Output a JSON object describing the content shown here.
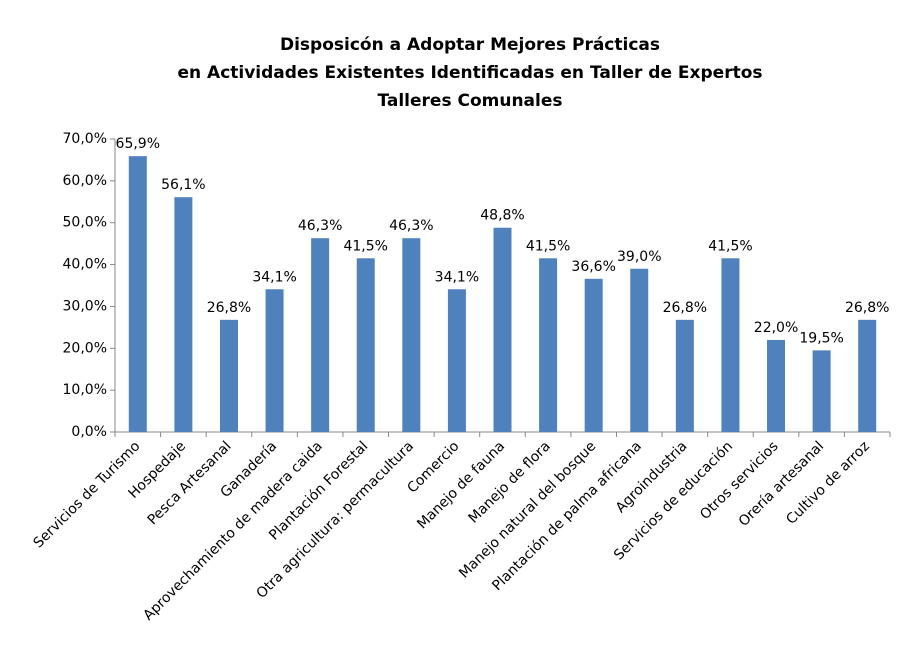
{
  "chart_data": {
    "type": "bar",
    "title": [
      "Disposicón a Adoptar Mejores Prácticas",
      "en Actividades Existentes Identificadas en Taller de Expertos",
      "Talleres Comunales"
    ],
    "categories": [
      "Servicios de Turismo",
      "Hospedaje",
      "Pesca Artesanal",
      "Ganadería",
      "Aprovechamiento de madera caida",
      "Plantación Forestal",
      "Otra agricultura: permacultura",
      "Comercio",
      "Manejo de fauna",
      "Manejo de flora",
      "Manejo natural del bosque",
      "Plantación de palma africana",
      "Agroindustria",
      "Servicios de educación",
      "Otros servicios",
      "Orería artesanal",
      "Cultivo de arroz"
    ],
    "values": [
      65.9,
      56.1,
      26.8,
      34.1,
      46.3,
      41.5,
      46.3,
      34.1,
      48.8,
      41.5,
      36.6,
      39.0,
      26.8,
      41.5,
      22.0,
      19.5,
      26.8
    ],
    "value_labels": [
      "65,9%",
      "56,1%",
      "26,8%",
      "34,1%",
      "46,3%",
      "41,5%",
      "46,3%",
      "34,1%",
      "48,8%",
      "41,5%",
      "36,6%",
      "39,0%",
      "26,8%",
      "41,5%",
      "22,0%",
      "19,5%",
      "26,8%"
    ],
    "color": "#4f81bd",
    "ylim": [
      0,
      70
    ],
    "yticks": [
      {
        "value": 0,
        "label": "0,0%"
      },
      {
        "value": 10,
        "label": "10,0%"
      },
      {
        "value": 20,
        "label": "20,0%"
      },
      {
        "value": 30,
        "label": "30,0%"
      },
      {
        "value": 40,
        "label": "40,0%"
      },
      {
        "value": 50,
        "label": "50,0%"
      },
      {
        "value": 60,
        "label": "60,0%"
      },
      {
        "value": 70,
        "label": "70,0%"
      }
    ],
    "grid": false
  }
}
